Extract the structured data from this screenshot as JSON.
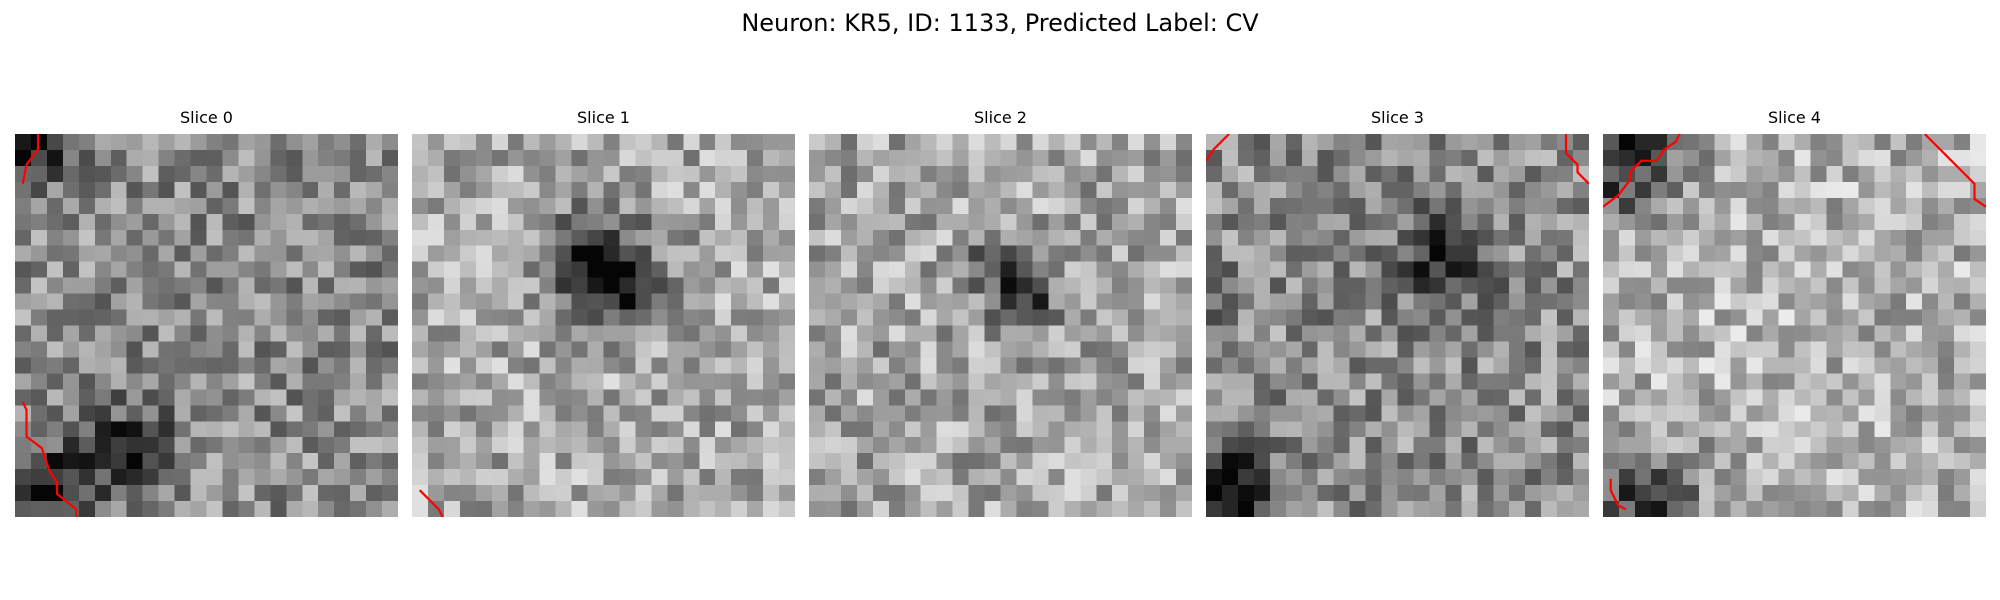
{
  "figure": {
    "title": "Neuron: KR5, ID: 1133, Predicted Label: CV"
  },
  "colors": {
    "contour": "#ff0000",
    "background": "#ffffff"
  },
  "slices": [
    {
      "title": "Slice 0",
      "dark_blobs": [
        [
          0.03,
          0.02,
          0.1,
          0.9
        ],
        [
          0.3,
          0.82,
          0.12,
          0.6
        ],
        [
          0.08,
          0.92,
          0.12,
          0.7
        ]
      ],
      "base_level": 0.55,
      "contours": [
        [
          [
            0.06,
            0.0
          ],
          [
            0.06,
            0.04
          ],
          [
            0.03,
            0.08
          ],
          [
            0.02,
            0.13
          ]
        ],
        [
          [
            0.02,
            0.7
          ],
          [
            0.03,
            0.72
          ],
          [
            0.03,
            0.79
          ],
          [
            0.07,
            0.82
          ],
          [
            0.09,
            0.88
          ],
          [
            0.11,
            0.91
          ],
          [
            0.11,
            0.94
          ],
          [
            0.16,
            0.98
          ],
          [
            0.16,
            1.0
          ]
        ]
      ]
    },
    {
      "title": "Slice 1",
      "dark_blobs": [
        [
          0.48,
          0.34,
          0.13,
          1.0
        ],
        [
          0.55,
          0.4,
          0.08,
          0.6
        ]
      ],
      "base_level": 0.66,
      "contours": [
        [
          [
            0.02,
            0.93
          ],
          [
            0.07,
            0.98
          ],
          [
            0.08,
            1.0
          ]
        ]
      ]
    },
    {
      "title": "Slice 2",
      "dark_blobs": [
        [
          0.55,
          0.42,
          0.09,
          0.85
        ],
        [
          0.48,
          0.33,
          0.06,
          0.5
        ]
      ],
      "base_level": 0.65,
      "contours": []
    },
    {
      "title": "Slice 3",
      "dark_blobs": [
        [
          0.06,
          0.93,
          0.12,
          0.9
        ],
        [
          0.62,
          0.33,
          0.12,
          0.6
        ],
        [
          0.02,
          0.4,
          0.06,
          0.5
        ]
      ],
      "base_level": 0.55,
      "contours": [
        [
          [
            0.0,
            0.07
          ],
          [
            0.02,
            0.04
          ],
          [
            0.06,
            0.0
          ]
        ],
        [
          [
            0.94,
            0.0
          ],
          [
            0.94,
            0.05
          ],
          [
            0.97,
            0.08
          ],
          [
            0.97,
            0.1
          ],
          [
            1.0,
            0.13
          ]
        ]
      ]
    },
    {
      "title": "Slice 4",
      "dark_blobs": [
        [
          0.05,
          0.05,
          0.15,
          1.0
        ],
        [
          0.12,
          0.96,
          0.13,
          0.8
        ],
        [
          0.02,
          0.82,
          0.05,
          0.4
        ]
      ],
      "base_level": 0.7,
      "contours": [
        [
          [
            0.0,
            0.19
          ],
          [
            0.04,
            0.16
          ],
          [
            0.07,
            0.12
          ],
          [
            0.07,
            0.1
          ],
          [
            0.1,
            0.07
          ],
          [
            0.14,
            0.07
          ],
          [
            0.16,
            0.04
          ],
          [
            0.19,
            0.02
          ],
          [
            0.2,
            0.0
          ]
        ],
        [
          [
            0.84,
            0.0
          ],
          [
            0.97,
            0.13
          ],
          [
            0.97,
            0.17
          ],
          [
            1.0,
            0.19
          ]
        ],
        [
          [
            0.02,
            0.9
          ],
          [
            0.02,
            0.93
          ],
          [
            0.04,
            0.97
          ],
          [
            0.06,
            0.98
          ]
        ]
      ]
    }
  ]
}
